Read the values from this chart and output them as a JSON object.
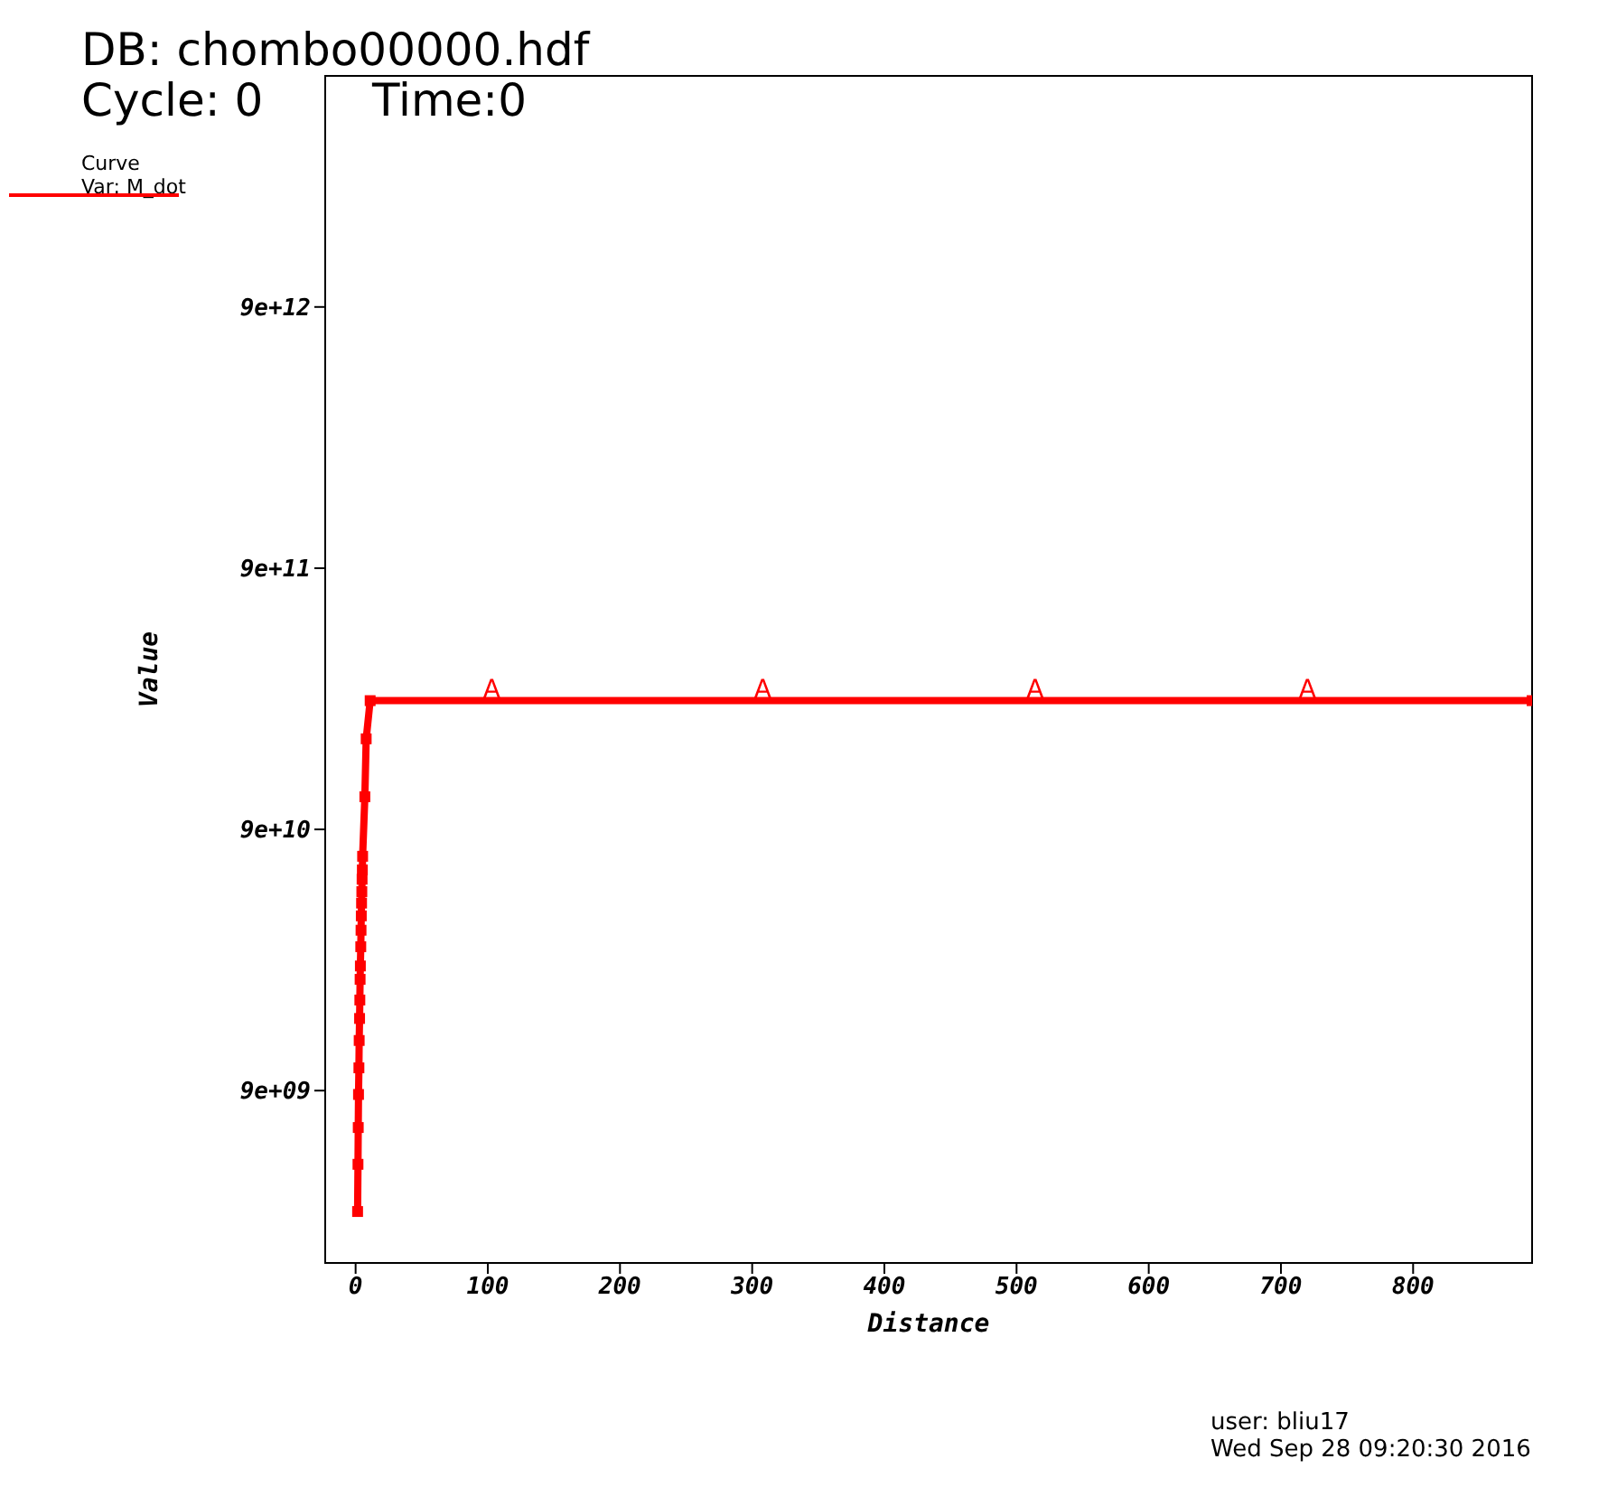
{
  "chart_data": {
    "type": "line",
    "title": "DB: chombo00000.hdf",
    "subtitle": "Cycle: 0",
    "xlabel": "Distance",
    "ylabel": "Value",
    "legend_title": "Curve",
    "legend": "top left",
    "log": "y",
    "marker": "square",
    "line_style": "solid",
    "grid": false,
    "x": [
      1.5,
      1.8,
      2,
      2.2,
      2.5,
      2.7,
      3,
      3.2,
      3.4,
      3.6,
      3.9,
      4.1,
      4.3,
      4.5,
      4.7,
      4.9,
      5.1,
      5.3,
      7,
      8,
      11,
      890
    ],
    "series": [
      {
        "name": "Var: M_dot",
        "color": "#ff0000",
        "values": [
          3100000000.0,
          4700000000.0,
          6500000000.0,
          8700000000.0,
          11000000000.0,
          14000000000.0,
          17000000000.0,
          20000000000.0,
          24000000000.0,
          27000000000.0,
          32000000000.0,
          37000000000.0,
          42000000000.0,
          47000000000.0,
          52000000000.0,
          58000000000.0,
          63000000000.0,
          71000000000.0,
          120000000000.0,
          200000000000.0,
          280000000000.0,
          280000000000.0
        ]
      }
    ],
    "xlim": [
      -23,
      890
    ],
    "xticks": [
      0,
      100,
      200,
      300,
      400,
      500,
      600,
      700,
      800
    ],
    "ylim": [
      1970000000.0,
      69000000000000.0
    ],
    "yticks": [
      {
        "value": 9000000000.0,
        "label": "9e+09"
      },
      {
        "value": 90000000000.0,
        "label": "9e+10"
      },
      {
        "value": 900000000000.0,
        "label": "9e+11"
      },
      {
        "value": 9000000000000.0,
        "label": "9e+12"
      }
    ],
    "annotations": [
      "Time:0",
      {
        "text": "A",
        "x": 103,
        "y": 280000000000.0
      },
      {
        "text": "A",
        "x": 308,
        "y": 280000000000.0
      },
      {
        "text": "A",
        "x": 514,
        "y": 280000000000.0
      },
      {
        "text": "A",
        "x": 720,
        "y": 280000000000.0
      },
      "user: bliu17",
      "Wed Sep 28 09:20:30 2016"
    ]
  }
}
